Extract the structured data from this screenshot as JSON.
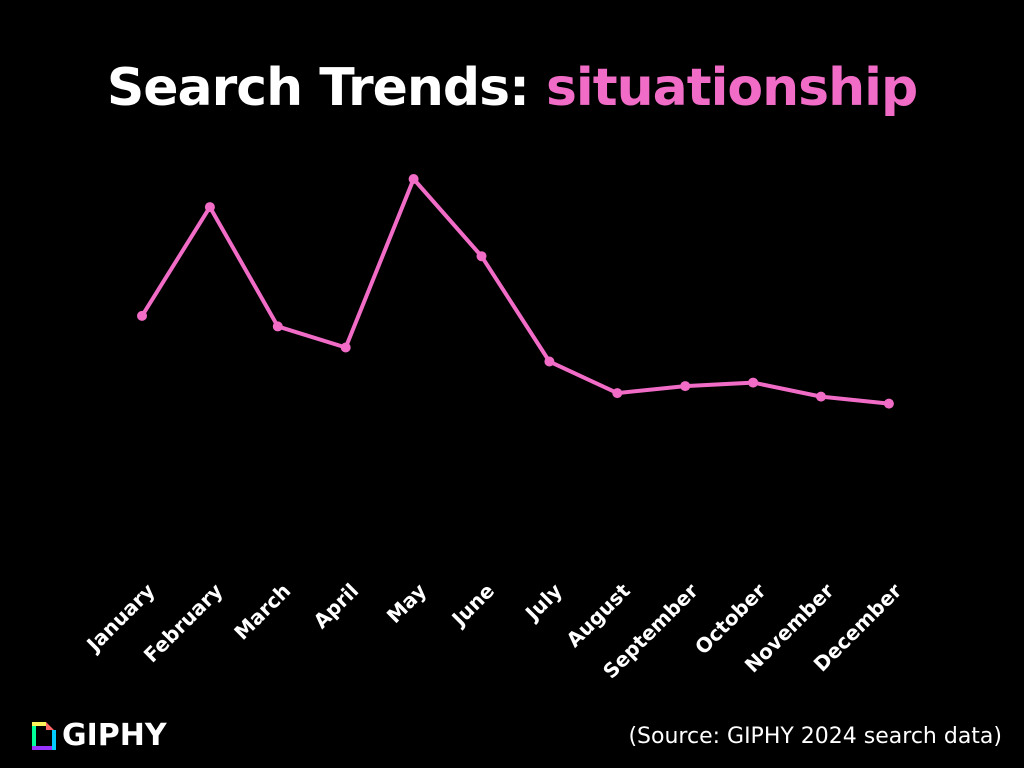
{
  "title": {
    "prefix": "Search Trends: ",
    "term": "situationship"
  },
  "colors": {
    "background": "#000000",
    "accent": "#f16cc6",
    "text": "#ffffff"
  },
  "chart_data": {
    "type": "line",
    "title": "Search Trends: situationship",
    "xlabel": "",
    "ylabel": "",
    "categories": [
      "January",
      "February",
      "March",
      "April",
      "May",
      "June",
      "July",
      "August",
      "September",
      "October",
      "November",
      "December"
    ],
    "series": [
      {
        "name": "situationship",
        "values": [
          61,
          92,
          58,
          52,
          100,
          78,
          48,
          39,
          41,
          42,
          38,
          36
        ]
      }
    ],
    "ylim": [
      0,
      100
    ],
    "grid": false,
    "legend": "none"
  },
  "logo": {
    "name": "GIPHY",
    "icon": "giphy-logo-icon"
  },
  "source": "(Source: GIPHY 2024 search data)"
}
